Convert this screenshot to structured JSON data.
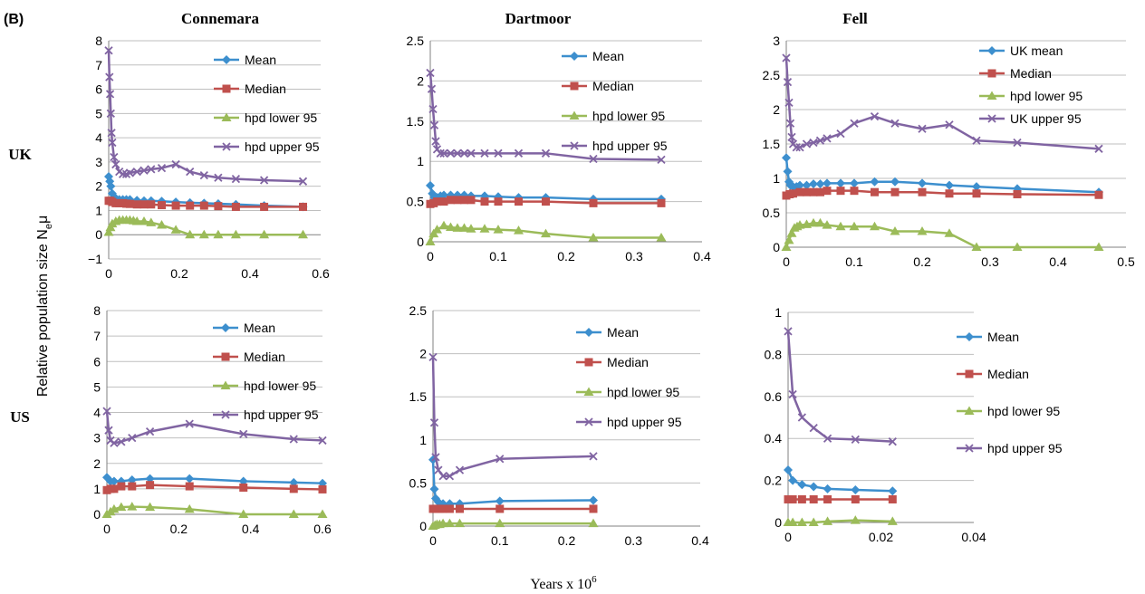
{
  "figure": {
    "panel_label": "(B)",
    "column_titles": [
      "Connemara",
      "Dartmoor",
      "Fell"
    ],
    "row_titles": [
      "UK",
      "US"
    ],
    "y_axis_label": "Relative population size N",
    "y_axis_label_sub": "e",
    "y_axis_label_mu": "μ",
    "x_axis_label": "Years x 10",
    "x_axis_label_sup": "6"
  },
  "colors": {
    "mean": "#3D8FCE",
    "median": "#C0504D",
    "lower": "#9BBB59",
    "upper": "#8064A2",
    "grid": "#BFBFBF"
  },
  "chart_data": [
    {
      "id": "uk-connemara",
      "type": "line",
      "title": "",
      "xlim": [
        0,
        0.6
      ],
      "ylim": [
        -1,
        8
      ],
      "xticks": [
        0,
        0.2,
        0.4,
        0.6
      ],
      "xtick_labels": [
        "0",
        "0.2",
        "0.4",
        "0.6"
      ],
      "yticks": [
        -1,
        0,
        1,
        2,
        3,
        4,
        5,
        6,
        7,
        8
      ],
      "ytick_labels": [
        "−1",
        "0",
        "1",
        "2",
        "3",
        "4",
        "5",
        "6",
        "7",
        "8"
      ],
      "grid": true,
      "legend": "top-right",
      "series": [
        {
          "name": "Mean",
          "marker": "diamond",
          "x": [
            0,
            0.003,
            0.006,
            0.01,
            0.015,
            0.02,
            0.03,
            0.04,
            0.05,
            0.06,
            0.08,
            0.1,
            0.12,
            0.15,
            0.19,
            0.23,
            0.27,
            0.31,
            0.36,
            0.44,
            0.55
          ],
          "y": [
            2.4,
            2.2,
            2.0,
            1.7,
            1.55,
            1.5,
            1.45,
            1.45,
            1.45,
            1.45,
            1.42,
            1.4,
            1.4,
            1.38,
            1.35,
            1.32,
            1.3,
            1.28,
            1.25,
            1.2,
            1.15
          ]
        },
        {
          "name": "Median",
          "marker": "square",
          "x": [
            0,
            0.005,
            0.01,
            0.02,
            0.03,
            0.04,
            0.05,
            0.06,
            0.08,
            0.1,
            0.12,
            0.15,
            0.19,
            0.23,
            0.27,
            0.31,
            0.36,
            0.44,
            0.55
          ],
          "y": [
            1.4,
            1.4,
            1.35,
            1.3,
            1.3,
            1.3,
            1.28,
            1.27,
            1.25,
            1.25,
            1.25,
            1.22,
            1.2,
            1.2,
            1.2,
            1.18,
            1.15,
            1.15,
            1.15
          ]
        },
        {
          "name": "hpd lower 95",
          "marker": "triangle",
          "x": [
            0,
            0.005,
            0.01,
            0.02,
            0.03,
            0.04,
            0.05,
            0.06,
            0.07,
            0.08,
            0.1,
            0.12,
            0.15,
            0.19,
            0.23,
            0.27,
            0.31,
            0.36,
            0.44,
            0.55
          ],
          "y": [
            0.1,
            0.3,
            0.45,
            0.55,
            0.6,
            0.6,
            0.6,
            0.6,
            0.58,
            0.55,
            0.55,
            0.5,
            0.4,
            0.2,
            0,
            0,
            0,
            0,
            0,
            0
          ]
        },
        {
          "name": "hpd upper 95",
          "marker": "x",
          "x": [
            0,
            0.002,
            0.004,
            0.006,
            0.008,
            0.01,
            0.015,
            0.02,
            0.03,
            0.04,
            0.05,
            0.06,
            0.08,
            0.1,
            0.12,
            0.15,
            0.19,
            0.23,
            0.27,
            0.31,
            0.36,
            0.44,
            0.55
          ],
          "y": [
            7.6,
            6.5,
            5.8,
            5.0,
            4.2,
            3.8,
            3.2,
            2.9,
            2.6,
            2.5,
            2.5,
            2.55,
            2.6,
            2.65,
            2.7,
            2.75,
            2.9,
            2.6,
            2.45,
            2.35,
            2.3,
            2.25,
            2.2
          ]
        }
      ]
    },
    {
      "id": "uk-dartmoor",
      "type": "line",
      "title": "",
      "xlim": [
        0,
        0.4
      ],
      "ylim": [
        0,
        2.5
      ],
      "xticks": [
        0,
        0.1,
        0.2,
        0.3,
        0.4
      ],
      "xtick_labels": [
        "0",
        "0.1",
        "0.2",
        "0.3",
        "0.4"
      ],
      "yticks": [
        0,
        0.5,
        1,
        1.5,
        2,
        2.5
      ],
      "ytick_labels": [
        "0",
        "0.5",
        "1",
        "1.5",
        "2",
        "2.5"
      ],
      "grid": true,
      "legend": "top-right",
      "series": [
        {
          "name": "Mean",
          "marker": "diamond",
          "x": [
            0,
            0.003,
            0.006,
            0.01,
            0.015,
            0.02,
            0.03,
            0.04,
            0.05,
            0.06,
            0.08,
            0.1,
            0.13,
            0.17,
            0.24,
            0.34
          ],
          "y": [
            0.7,
            0.6,
            0.55,
            0.55,
            0.57,
            0.58,
            0.58,
            0.58,
            0.58,
            0.57,
            0.57,
            0.56,
            0.55,
            0.55,
            0.53,
            0.53
          ]
        },
        {
          "name": "Median",
          "marker": "square",
          "x": [
            0,
            0.005,
            0.01,
            0.02,
            0.03,
            0.04,
            0.05,
            0.06,
            0.08,
            0.1,
            0.13,
            0.17,
            0.24,
            0.34
          ],
          "y": [
            0.47,
            0.48,
            0.5,
            0.5,
            0.52,
            0.52,
            0.52,
            0.52,
            0.5,
            0.5,
            0.5,
            0.5,
            0.48,
            0.48
          ]
        },
        {
          "name": "hpd lower 95",
          "marker": "triangle",
          "x": [
            0,
            0.005,
            0.01,
            0.02,
            0.03,
            0.04,
            0.05,
            0.06,
            0.08,
            0.1,
            0.13,
            0.17,
            0.24,
            0.34
          ],
          "y": [
            0,
            0.1,
            0.15,
            0.2,
            0.18,
            0.17,
            0.17,
            0.16,
            0.16,
            0.15,
            0.14,
            0.1,
            0.05,
            0.05
          ]
        },
        {
          "name": "hpd upper 95",
          "marker": "x",
          "x": [
            0,
            0.002,
            0.004,
            0.006,
            0.008,
            0.01,
            0.015,
            0.02,
            0.03,
            0.04,
            0.05,
            0.06,
            0.08,
            0.1,
            0.13,
            0.17,
            0.24,
            0.34
          ],
          "y": [
            2.1,
            1.9,
            1.65,
            1.45,
            1.25,
            1.15,
            1.1,
            1.1,
            1.1,
            1.1,
            1.1,
            1.1,
            1.1,
            1.1,
            1.1,
            1.1,
            1.03,
            1.02
          ]
        }
      ]
    },
    {
      "id": "uk-fell",
      "type": "line",
      "title": "",
      "xlim": [
        0,
        0.5
      ],
      "ylim": [
        0,
        3
      ],
      "xticks": [
        0,
        0.1,
        0.2,
        0.3,
        0.4,
        0.5
      ],
      "xtick_labels": [
        "0",
        "0.1",
        "0.2",
        "0.3",
        "0.4",
        "0.5"
      ],
      "yticks": [
        0,
        0.5,
        1,
        1.5,
        2,
        2.5,
        3
      ],
      "ytick_labels": [
        "0",
        "0.5",
        "1",
        "1.5",
        "2",
        "2.5",
        "3"
      ],
      "grid": true,
      "legend": "top-right",
      "series": [
        {
          "name": "UK mean",
          "marker": "diamond",
          "x": [
            0,
            0.002,
            0.004,
            0.006,
            0.01,
            0.015,
            0.02,
            0.03,
            0.04,
            0.05,
            0.06,
            0.08,
            0.1,
            0.13,
            0.16,
            0.2,
            0.24,
            0.28,
            0.34,
            0.46
          ],
          "y": [
            1.3,
            1.1,
            0.95,
            0.9,
            0.88,
            0.88,
            0.9,
            0.9,
            0.92,
            0.92,
            0.93,
            0.93,
            0.93,
            0.95,
            0.95,
            0.93,
            0.9,
            0.88,
            0.85,
            0.8
          ]
        },
        {
          "name": "Median",
          "marker": "square",
          "x": [
            0,
            0.005,
            0.01,
            0.02,
            0.03,
            0.04,
            0.05,
            0.06,
            0.08,
            0.1,
            0.13,
            0.16,
            0.2,
            0.24,
            0.28,
            0.34,
            0.46
          ],
          "y": [
            0.75,
            0.77,
            0.78,
            0.8,
            0.8,
            0.8,
            0.8,
            0.82,
            0.82,
            0.82,
            0.8,
            0.8,
            0.8,
            0.78,
            0.78,
            0.77,
            0.76
          ]
        },
        {
          "name": "hpd lower 95",
          "marker": "triangle",
          "x": [
            0,
            0.004,
            0.008,
            0.012,
            0.016,
            0.02,
            0.03,
            0.04,
            0.05,
            0.06,
            0.08,
            0.1,
            0.13,
            0.16,
            0.2,
            0.24,
            0.28,
            0.34,
            0.46
          ],
          "y": [
            0,
            0.1,
            0.2,
            0.28,
            0.3,
            0.32,
            0.33,
            0.35,
            0.35,
            0.32,
            0.3,
            0.3,
            0.3,
            0.23,
            0.23,
            0.2,
            0,
            0,
            0
          ]
        },
        {
          "name": "UK upper 95",
          "marker": "x",
          "x": [
            0,
            0.002,
            0.004,
            0.006,
            0.008,
            0.01,
            0.015,
            0.02,
            0.03,
            0.04,
            0.05,
            0.06,
            0.08,
            0.1,
            0.13,
            0.16,
            0.2,
            0.24,
            0.28,
            0.34,
            0.46
          ],
          "y": [
            2.75,
            2.4,
            2.1,
            1.8,
            1.6,
            1.5,
            1.45,
            1.45,
            1.5,
            1.52,
            1.55,
            1.58,
            1.65,
            1.8,
            1.9,
            1.8,
            1.72,
            1.78,
            1.55,
            1.52,
            1.43
          ]
        }
      ]
    },
    {
      "id": "us-connemara",
      "type": "line",
      "title": "",
      "xlim": [
        0,
        0.6
      ],
      "ylim": [
        0,
        8
      ],
      "xticks": [
        0,
        0.2,
        0.4,
        0.6
      ],
      "xtick_labels": [
        "0",
        "0.2",
        "0.4",
        "0.6"
      ],
      "yticks": [
        0,
        1,
        2,
        3,
        4,
        5,
        6,
        7,
        8
      ],
      "ytick_labels": [
        "0",
        "1",
        "2",
        "3",
        "4",
        "5",
        "6",
        "7",
        "8"
      ],
      "grid": true,
      "legend": "top-right",
      "series": [
        {
          "name": "Mean",
          "marker": "diamond",
          "x": [
            0,
            0.01,
            0.02,
            0.04,
            0.07,
            0.12,
            0.23,
            0.38,
            0.52,
            0.6
          ],
          "y": [
            1.45,
            1.3,
            1.3,
            1.3,
            1.35,
            1.4,
            1.4,
            1.3,
            1.25,
            1.22
          ]
        },
        {
          "name": "Median",
          "marker": "square",
          "x": [
            0,
            0.01,
            0.02,
            0.04,
            0.07,
            0.12,
            0.23,
            0.38,
            0.52,
            0.6
          ],
          "y": [
            0.95,
            1.0,
            1.0,
            1.1,
            1.1,
            1.15,
            1.1,
            1.05,
            1.0,
            0.98
          ]
        },
        {
          "name": "hpd lower 95",
          "marker": "triangle",
          "x": [
            0,
            0.01,
            0.02,
            0.04,
            0.07,
            0.12,
            0.23,
            0.38,
            0.52,
            0.6
          ],
          "y": [
            0,
            0.1,
            0.2,
            0.28,
            0.3,
            0.28,
            0.2,
            0,
            0,
            0
          ]
        },
        {
          "name": "hpd upper 95",
          "marker": "x",
          "x": [
            0,
            0.005,
            0.01,
            0.02,
            0.04,
            0.07,
            0.12,
            0.23,
            0.38,
            0.52,
            0.6
          ],
          "y": [
            4.05,
            3.3,
            2.9,
            2.8,
            2.85,
            3.0,
            3.25,
            3.55,
            3.15,
            2.95,
            2.9
          ]
        }
      ]
    },
    {
      "id": "us-dartmoor",
      "type": "line",
      "title": "",
      "xlim": [
        0,
        0.4
      ],
      "ylim": [
        0,
        2.5
      ],
      "xticks": [
        0,
        0.1,
        0.2,
        0.3,
        0.4
      ],
      "xtick_labels": [
        "0",
        "0.1",
        "0.2",
        "0.3",
        "0.4"
      ],
      "yticks": [
        0,
        0.5,
        1,
        1.5,
        2,
        2.5
      ],
      "ytick_labels": [
        "0",
        "0.5",
        "1",
        "1.5",
        "2",
        "2.5"
      ],
      "grid": true,
      "legend": "top-right",
      "series": [
        {
          "name": "Mean",
          "marker": "diamond",
          "x": [
            0,
            0.002,
            0.004,
            0.008,
            0.015,
            0.025,
            0.04,
            0.1,
            0.24
          ],
          "y": [
            0.77,
            0.43,
            0.32,
            0.28,
            0.26,
            0.26,
            0.26,
            0.29,
            0.3
          ]
        },
        {
          "name": "Median",
          "marker": "square",
          "x": [
            0,
            0.003,
            0.006,
            0.01,
            0.015,
            0.025,
            0.04,
            0.1,
            0.24
          ],
          "y": [
            0.2,
            0.2,
            0.2,
            0.2,
            0.2,
            0.2,
            0.2,
            0.2,
            0.2
          ]
        },
        {
          "name": "hpd lower 95",
          "marker": "triangle",
          "x": [
            0,
            0.003,
            0.006,
            0.01,
            0.015,
            0.025,
            0.04,
            0.1,
            0.24
          ],
          "y": [
            0,
            0.01,
            0.02,
            0.02,
            0.03,
            0.03,
            0.03,
            0.03,
            0.03
          ]
        },
        {
          "name": "hpd upper 95",
          "marker": "x",
          "x": [
            0,
            0.002,
            0.004,
            0.008,
            0.015,
            0.025,
            0.04,
            0.1,
            0.24
          ],
          "y": [
            1.96,
            1.2,
            0.8,
            0.65,
            0.58,
            0.58,
            0.65,
            0.78,
            0.81
          ]
        }
      ]
    },
    {
      "id": "us-fell",
      "type": "line",
      "title": "",
      "xlim": [
        0,
        0.04
      ],
      "ylim": [
        0,
        1
      ],
      "xticks": [
        0,
        0.02,
        0.04
      ],
      "xtick_labels": [
        "0",
        "0.02",
        "0.04"
      ],
      "yticks": [
        0,
        0.2,
        0.4,
        0.6,
        0.8,
        1
      ],
      "ytick_labels": [
        "0",
        "0.2",
        "0.4",
        "0.6",
        "0.8",
        "1"
      ],
      "grid": true,
      "legend": "right",
      "series": [
        {
          "name": "Mean",
          "marker": "diamond",
          "x": [
            0,
            0.001,
            0.003,
            0.0055,
            0.0085,
            0.0145,
            0.0225
          ],
          "y": [
            0.25,
            0.2,
            0.18,
            0.17,
            0.16,
            0.155,
            0.15
          ]
        },
        {
          "name": "Median",
          "marker": "square",
          "x": [
            0,
            0.001,
            0.003,
            0.0055,
            0.0085,
            0.0145,
            0.0225
          ],
          "y": [
            0.11,
            0.11,
            0.11,
            0.11,
            0.11,
            0.11,
            0.11
          ]
        },
        {
          "name": "hpd lower 95",
          "marker": "triangle",
          "x": [
            0,
            0.001,
            0.003,
            0.0055,
            0.0085,
            0.0145,
            0.0225
          ],
          "y": [
            0,
            0.0,
            0.0,
            0.0,
            0.005,
            0.01,
            0.005
          ]
        },
        {
          "name": "hpd upper 95",
          "marker": "x",
          "x": [
            0,
            0.001,
            0.003,
            0.0055,
            0.0085,
            0.0145,
            0.0225
          ],
          "y": [
            0.91,
            0.61,
            0.5,
            0.45,
            0.4,
            0.395,
            0.385
          ]
        }
      ]
    }
  ]
}
